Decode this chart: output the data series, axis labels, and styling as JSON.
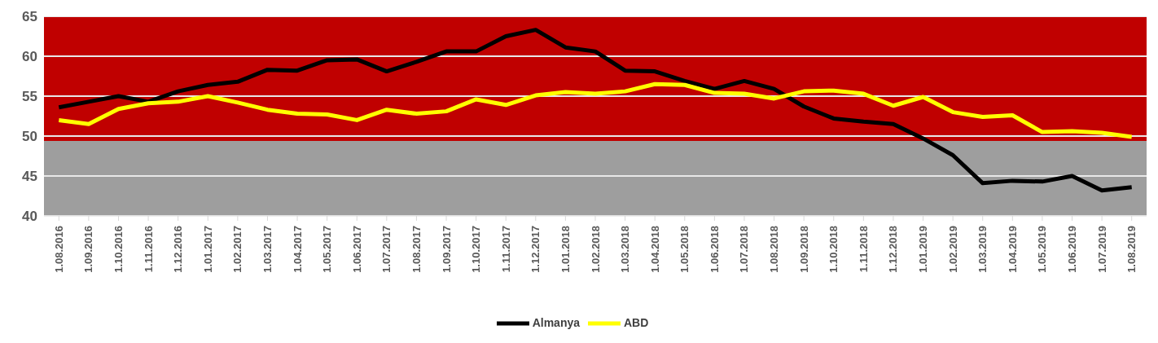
{
  "chart_data": {
    "type": "line",
    "categories": [
      "1.08.2016",
      "1.09.2016",
      "1.10.2016",
      "1.11.2016",
      "1.12.2016",
      "1.01.2017",
      "1.02.2017",
      "1.03.2017",
      "1.04.2017",
      "1.05.2017",
      "1.06.2017",
      "1.07.2017",
      "1.08.2017",
      "1.09.2017",
      "1.10.2017",
      "1.11.2017",
      "1.12.2017",
      "1.01.2018",
      "1.02.2018",
      "1.03.2018",
      "1.04.2018",
      "1.05.2018",
      "1.06.2018",
      "1.07.2018",
      "1.08.2018",
      "1.09.2018",
      "1.10.2018",
      "1.11.2018",
      "1.12.2018",
      "1.01.2019",
      "1.02.2019",
      "1.03.2019",
      "1.04.2019",
      "1.05.2019",
      "1.06.2019",
      "1.07.2019",
      "1.08.2019"
    ],
    "series": [
      {
        "name": "Almanya",
        "color": "#000000",
        "values": [
          53.6,
          54.3,
          55.0,
          54.3,
          55.6,
          56.4,
          56.8,
          58.3,
          58.2,
          59.5,
          59.6,
          58.1,
          59.3,
          60.6,
          60.6,
          62.5,
          63.3,
          61.1,
          60.6,
          58.2,
          58.1,
          56.9,
          55.9,
          56.9,
          55.9,
          53.7,
          52.2,
          51.8,
          51.5,
          49.7,
          47.6,
          44.1,
          44.4,
          44.3,
          45.0,
          43.2,
          43.6
        ]
      },
      {
        "name": "ABD",
        "color": "#ffff00",
        "values": [
          52.0,
          51.5,
          53.4,
          54.1,
          54.3,
          55.0,
          54.2,
          53.3,
          52.8,
          52.7,
          52.0,
          53.3,
          52.8,
          53.1,
          54.6,
          53.9,
          55.1,
          55.5,
          55.3,
          55.6,
          56.5,
          56.4,
          55.4,
          55.3,
          54.7,
          55.6,
          55.7,
          55.3,
          53.8,
          54.9,
          53.0,
          52.4,
          52.6,
          50.5,
          50.6,
          50.4,
          49.9
        ]
      }
    ],
    "ylim": [
      40,
      65
    ],
    "yticks": [
      40,
      45,
      50,
      55,
      60,
      65
    ],
    "bands": [
      {
        "axis": "y",
        "from": 49.4,
        "to": 65,
        "color": "#c00000"
      },
      {
        "axis": "y",
        "from": 40,
        "to": 49.4,
        "color": "#9e9e9e"
      }
    ],
    "grid": "y",
    "legend": "bottom",
    "marker": "none",
    "line_style": "solid"
  }
}
